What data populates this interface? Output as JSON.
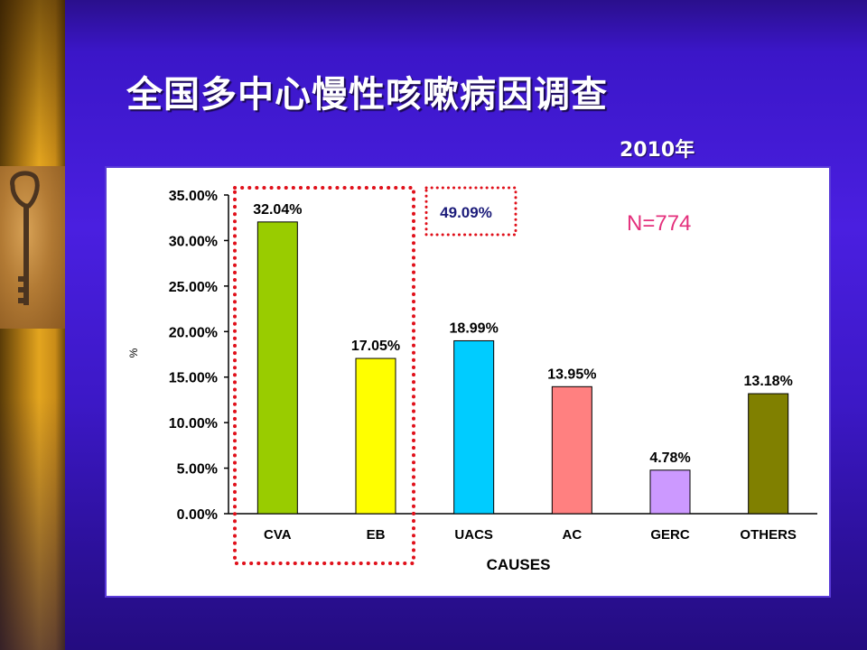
{
  "slide": {
    "title": "全国多中心慢性咳嗽病因调查",
    "year": "2010年"
  },
  "annotations": {
    "highlight_total": "49.09%",
    "sample_size": "N=774"
  },
  "colors": {
    "background": "#3b16c8",
    "dotted_box": "#e0101a",
    "sample_text": "#e4307c",
    "highlight_text": "#1c1c7a"
  },
  "chart_data": {
    "type": "bar",
    "categories": [
      "CVA",
      "EB",
      "UACS",
      "AC",
      "GERC",
      "OTHERS"
    ],
    "values": [
      32.04,
      17.05,
      18.99,
      13.95,
      4.78,
      13.18
    ],
    "value_labels": [
      "32.04%",
      "17.05%",
      "18.99%",
      "13.95%",
      "4.78%",
      "13.18%"
    ],
    "bar_colors": [
      "#99cc00",
      "#ffff00",
      "#00ccff",
      "#ff8080",
      "#cc99ff",
      "#808000"
    ],
    "ylim": [
      0,
      35
    ],
    "yticks": [
      0,
      5,
      10,
      15,
      20,
      25,
      30,
      35
    ],
    "ytick_labels": [
      "0.00%",
      "5.00%",
      "10.00%",
      "15.00%",
      "20.00%",
      "25.00%",
      "30.00%",
      "35.00%"
    ],
    "xlabel": "CAUSES",
    "ylabel": "%",
    "grid": false,
    "legend": "none"
  }
}
